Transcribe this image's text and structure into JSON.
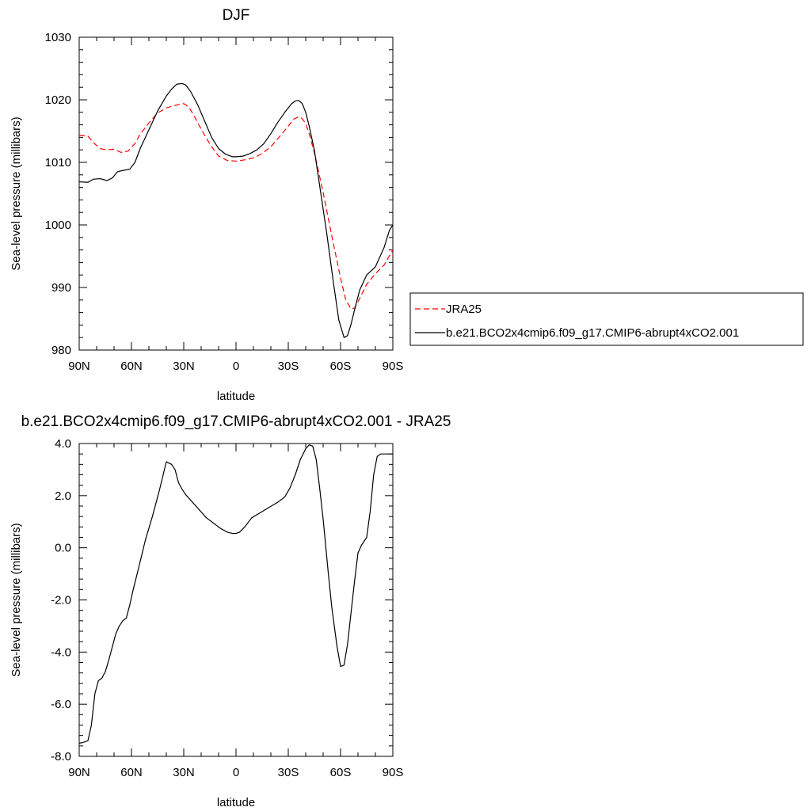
{
  "chart_data": [
    {
      "type": "line",
      "title": "DJF",
      "xlabel": "latitude",
      "ylabel": "Sea-level pressure (millibars)",
      "xlim": [
        90,
        -90
      ],
      "ylim": [
        980,
        1030
      ],
      "x_tick_values": [
        90,
        60,
        30,
        0,
        -30,
        -60,
        -90
      ],
      "x_tick_labels": [
        "90N",
        "60N",
        "30N",
        "0",
        "30S",
        "60S",
        "90S"
      ],
      "y_tick_values": [
        980,
        990,
        1000,
        1010,
        1020,
        1030
      ],
      "y_tick_labels": [
        "980",
        "990",
        "1000",
        "1010",
        "1020",
        "1030"
      ],
      "grid": false,
      "legend_position": "right",
      "series": [
        {
          "name": "JRA25",
          "color": "#ff0000",
          "style": "dashed",
          "x": [
            90,
            85,
            82,
            78,
            74,
            70,
            66,
            62,
            58,
            55,
            50,
            45,
            40,
            35,
            30,
            27,
            24,
            20,
            15,
            10,
            5,
            0,
            -5,
            -10,
            -15,
            -20,
            -25,
            -30,
            -33,
            -36,
            -38,
            -40,
            -42,
            -45,
            -50,
            -55,
            -60,
            -63,
            -66,
            -68,
            -70,
            -75,
            -80,
            -85,
            -90
          ],
          "y": [
            1014.3,
            1014.2,
            1013.2,
            1012.2,
            1012.0,
            1012.1,
            1011.6,
            1011.8,
            1013.0,
            1014.5,
            1016.3,
            1017.9,
            1018.7,
            1019.1,
            1019.4,
            1018.8,
            1017.4,
            1015.3,
            1012.9,
            1011.0,
            1010.3,
            1010.2,
            1010.4,
            1010.7,
            1011.4,
            1012.5,
            1014.1,
            1015.8,
            1016.9,
            1017.3,
            1017.0,
            1016.2,
            1014.6,
            1011.5,
            1005.2,
            998.2,
            991.5,
            988.0,
            986.6,
            986.7,
            987.7,
            990.5,
            992.2,
            993.6,
            996.0
          ]
        },
        {
          "name": "b.e21.BCO2x4cmip6.f09_g17.CMIP6-abrupt4xCO2.001",
          "color": "#000000",
          "style": "solid",
          "x": [
            90,
            85,
            82,
            78,
            74,
            71,
            68,
            65,
            61,
            58,
            55,
            50,
            45,
            40,
            37,
            34,
            31,
            29,
            26,
            22,
            18,
            14,
            10,
            6,
            2,
            0,
            -4,
            -8,
            -12,
            -16,
            -20,
            -24,
            -28,
            -32,
            -34,
            -36,
            -38,
            -40,
            -42,
            -45,
            -48,
            -52,
            -56,
            -59,
            -62,
            -64,
            -66,
            -68,
            -71,
            -75,
            -80,
            -85,
            -88,
            -90
          ],
          "y": [
            1006.9,
            1006.8,
            1007.3,
            1007.4,
            1007.1,
            1007.5,
            1008.5,
            1008.7,
            1008.9,
            1010.0,
            1012.2,
            1015.2,
            1018.2,
            1020.6,
            1021.7,
            1022.5,
            1022.6,
            1022.4,
            1021.3,
            1019.2,
            1016.6,
            1014.0,
            1012.2,
            1011.3,
            1010.9,
            1010.9,
            1011.0,
            1011.4,
            1012.0,
            1013.0,
            1014.6,
            1016.4,
            1018.0,
            1019.4,
            1019.8,
            1019.9,
            1019.4,
            1018.0,
            1015.8,
            1011.9,
            1006.3,
            998.8,
            990.6,
            984.8,
            982.0,
            982.3,
            984.1,
            986.4,
            989.6,
            992.0,
            993.3,
            996.4,
            999.1,
            1000.0
          ]
        }
      ]
    },
    {
      "type": "line",
      "title": "b.e21.BCO2x4cmip6.f09_g17.CMIP6-abrupt4xCO2.001 - JRA25",
      "xlabel": "latitude",
      "ylabel": "Sea-level pressure (millibars)",
      "xlim": [
        90,
        -90
      ],
      "ylim": [
        -8.0,
        4.0
      ],
      "x_tick_values": [
        90,
        60,
        30,
        0,
        -30,
        -60,
        -90
      ],
      "x_tick_labels": [
        "90N",
        "60N",
        "30N",
        "0",
        "30S",
        "60S",
        "90S"
      ],
      "y_tick_values": [
        -8,
        -6,
        -4,
        -2,
        0,
        2,
        4
      ],
      "y_tick_labels": [
        "-8.0",
        "-6.0",
        "-4.0",
        "-2.0",
        "0.0",
        "2.0",
        "4.0"
      ],
      "grid": false,
      "series": [
        {
          "color": "#000000",
          "style": "solid",
          "x": [
            90,
            87,
            85,
            83,
            81,
            79,
            77,
            75,
            73,
            71,
            69,
            67,
            65,
            63,
            61,
            59,
            56,
            52,
            48,
            44,
            40,
            37,
            35,
            33,
            31,
            29,
            27,
            25,
            21,
            17,
            13,
            9,
            5,
            2,
            0,
            -2,
            -5,
            -9,
            -14,
            -19,
            -24,
            -28,
            -31,
            -34,
            -37,
            -40,
            -42,
            -44,
            -46,
            -48,
            -50,
            -53,
            -55,
            -58,
            -60,
            -62,
            -64,
            -66,
            -68,
            -70,
            -72,
            -75,
            -77,
            -79,
            -81,
            -83,
            -85,
            -87,
            -88,
            -90
          ],
          "y": [
            -7.5,
            -7.45,
            -7.4,
            -6.8,
            -5.6,
            -5.1,
            -5.0,
            -4.75,
            -4.3,
            -3.8,
            -3.3,
            -3.0,
            -2.8,
            -2.7,
            -2.2,
            -1.6,
            -0.8,
            0.3,
            1.2,
            2.2,
            3.3,
            3.2,
            3.0,
            2.5,
            2.25,
            2.05,
            1.9,
            1.75,
            1.45,
            1.15,
            0.95,
            0.75,
            0.6,
            0.55,
            0.55,
            0.6,
            0.8,
            1.15,
            1.35,
            1.55,
            1.75,
            1.95,
            2.3,
            2.8,
            3.4,
            3.8,
            3.95,
            3.9,
            3.4,
            2.3,
            1.1,
            -1.0,
            -2.3,
            -3.8,
            -4.55,
            -4.5,
            -3.7,
            -2.5,
            -1.3,
            -0.2,
            0.1,
            0.4,
            1.4,
            2.8,
            3.5,
            3.6,
            3.6,
            3.6,
            3.6,
            3.6
          ]
        }
      ]
    }
  ]
}
